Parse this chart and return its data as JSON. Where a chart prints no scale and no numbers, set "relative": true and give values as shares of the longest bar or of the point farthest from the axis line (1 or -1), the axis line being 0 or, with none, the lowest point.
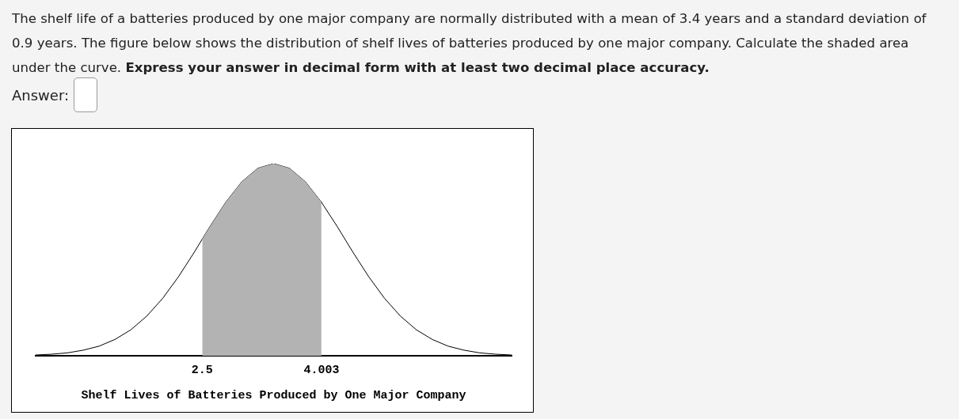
{
  "chart_data": {
    "type": "line",
    "title": "The shelf life of a batteries produced by one major company are normally distributed with a mean of 3.4 years and a standard deviation of 0.9 years. The figure below shows the distribution of shelf lives of batteries produced by one major company. Calculate the shaded area under the curve.",
    "subtitle": "Express your answer in decimal form with at least two decimal place accuracy.",
    "annotations": [
      "Answer:"
    ],
    "xlabel": "Shelf Lives of Batteries Produced by One Major Company",
    "relative": true,
    "xlim": [
      0.4,
      6.4
    ],
    "xticks": [
      2.5,
      4.003
    ],
    "series": [
      {
        "type": "area",
        "color": "#b3b3b3",
        "x": [
          2.5,
          2.6,
          2.8,
          3.0,
          3.2,
          3.4,
          3.6,
          3.8,
          4.0,
          4.003
        ],
        "values": [
          0.607,
          0.674,
          0.801,
          0.906,
          0.976,
          1,
          0.976,
          0.906,
          0.801,
          0.799
        ]
      },
      {
        "type": "line",
        "color": "#000000",
        "x": [
          0.4,
          0.6,
          0.8,
          1.0,
          1.2,
          1.4,
          1.6,
          1.8,
          2.0,
          2.2,
          2.4,
          2.5,
          2.6,
          2.8,
          3.0,
          3.2,
          3.4,
          3.6,
          3.8,
          4.0,
          4.003,
          4.2,
          4.4,
          4.6,
          4.8,
          5.0,
          5.2,
          5.4,
          5.6,
          5.8,
          6.0,
          6.2,
          6.4
        ],
        "values": [
          0.004,
          0.008,
          0.015,
          0.029,
          0.05,
          0.085,
          0.135,
          0.206,
          0.298,
          0.411,
          0.539,
          0.607,
          0.674,
          0.801,
          0.906,
          0.976,
          1,
          0.976,
          0.906,
          0.801,
          0.799,
          0.674,
          0.539,
          0.411,
          0.298,
          0.206,
          0.135,
          0.085,
          0.05,
          0.029,
          0.015,
          0.008,
          0.004
        ]
      }
    ]
  }
}
